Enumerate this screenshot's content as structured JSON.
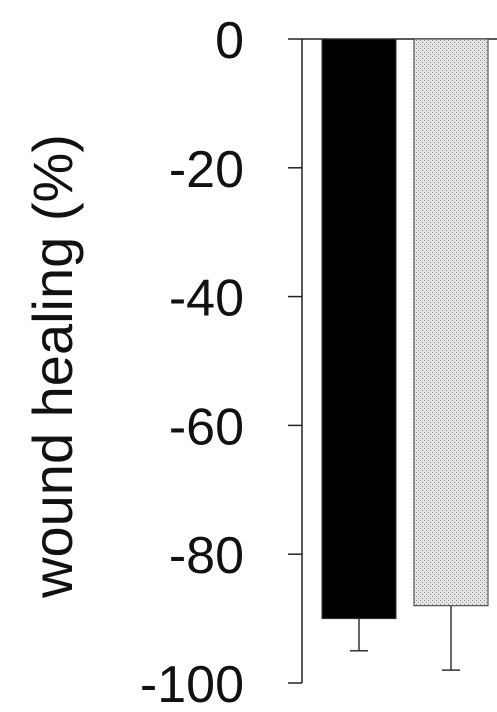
{
  "chart_data": {
    "type": "bar",
    "title": "",
    "xlabel": "",
    "ylabel": "wound healing (%)",
    "ylim": [
      -100,
      0
    ],
    "yticks": [
      0,
      -20,
      -40,
      -60,
      -80,
      -100
    ],
    "ytick_labels": [
      "0",
      "-20",
      "-40",
      "-60",
      "-80",
      "-100"
    ],
    "categories": [
      "",
      ""
    ],
    "values": [
      -90,
      -88
    ],
    "errors": [
      5,
      10
    ],
    "bar_colors": [
      "#000000",
      "#d9d9d9"
    ],
    "grid": false,
    "legend": "none"
  }
}
